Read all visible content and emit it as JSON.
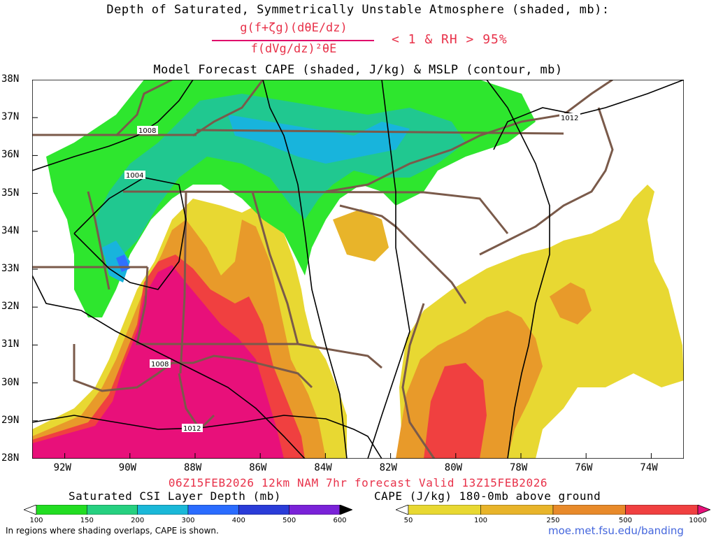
{
  "title": {
    "line1": "Depth of Saturated, Symmetrically Unstable Atmosphere (shaded, mb):",
    "formula_numerator": "g(f+ζg)(dθE/dz)",
    "formula_denominator": "f(dVg/dz)²θE",
    "formula_condition": "< 1 & RH > 95%",
    "line3": "Model Forecast CAPE (shaded, J/kg) & MSLP (contour, mb)"
  },
  "map": {
    "lat_labels": [
      "38N",
      "37N",
      "36N",
      "35N",
      "34N",
      "33N",
      "32N",
      "31N",
      "30N",
      "29N",
      "28N"
    ],
    "lon_labels": [
      "92W",
      "90W",
      "88W",
      "86W",
      "84W",
      "82W",
      "80W",
      "78W",
      "76W",
      "74W"
    ],
    "lon_range": [
      -93,
      -73
    ],
    "lat_range": [
      28,
      38
    ],
    "isobar_labels": [
      "1008",
      "1004",
      "1008",
      "1012",
      "1012"
    ],
    "colors": {
      "csi_green": "#2ee62e",
      "csi_teal": "#20c890",
      "csi_cyan": "#18b4dc",
      "csi_blue": "#3070ff",
      "cape_yellow": "#e8d832",
      "cape_orange": "#e89a2a",
      "cape_red": "#f04040",
      "cape_magenta": "#e8107a",
      "borders": "#7a5a4a"
    }
  },
  "forecast_line": "06Z15FEB2026 12km NAM 7hr forecast Valid 13Z15FEB2026",
  "legend": {
    "csi_title": "Saturated CSI Layer Depth (mb)",
    "csi_ticks": [
      "100",
      "150",
      "200",
      "300",
      "400",
      "500",
      "600"
    ],
    "csi_colors": [
      "#22dd22",
      "#26d080",
      "#1ab8d8",
      "#2a6cff",
      "#2a3cd8",
      "#7a22d8"
    ],
    "cape_title": "CAPE (J/kg) 180-0mb above ground",
    "cape_ticks": [
      "50",
      "100",
      "250",
      "500",
      "1000"
    ],
    "cape_colors": [
      "#e8d832",
      "#e8b42a",
      "#e88a2a",
      "#f04040"
    ]
  },
  "note": "In regions where shading overlaps, CAPE is shown.",
  "credit": "moe.met.fsu.edu/banding"
}
